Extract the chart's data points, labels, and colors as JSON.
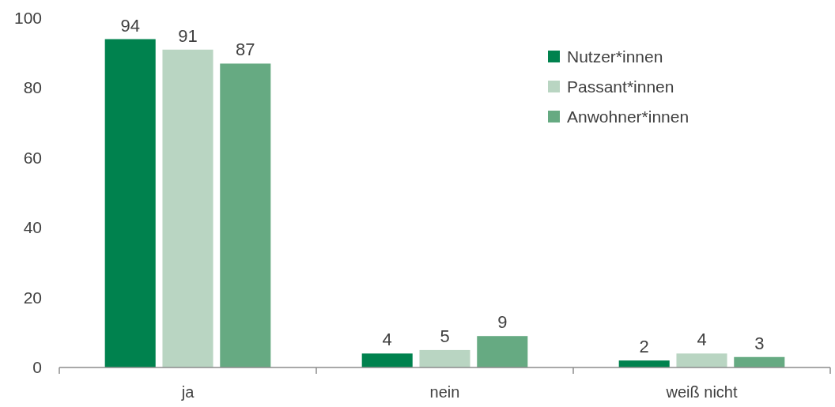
{
  "chart_data": {
    "type": "bar",
    "categories": [
      "ja",
      "nein",
      "weiß nicht"
    ],
    "series": [
      {
        "name": "Nutzer*innen",
        "color": "#00824e",
        "values": [
          94,
          4,
          2
        ]
      },
      {
        "name": "Passant*innen",
        "color": "#b9d5c2",
        "values": [
          91,
          5,
          4
        ]
      },
      {
        "name": "Anwohner*innen",
        "color": "#66aa82",
        "values": [
          87,
          9,
          3
        ]
      }
    ],
    "ylim": [
      0,
      100
    ],
    "yticks": [
      0,
      20,
      40,
      60,
      80,
      100
    ],
    "grid": false,
    "legend": "top right",
    "data_labels": true
  }
}
